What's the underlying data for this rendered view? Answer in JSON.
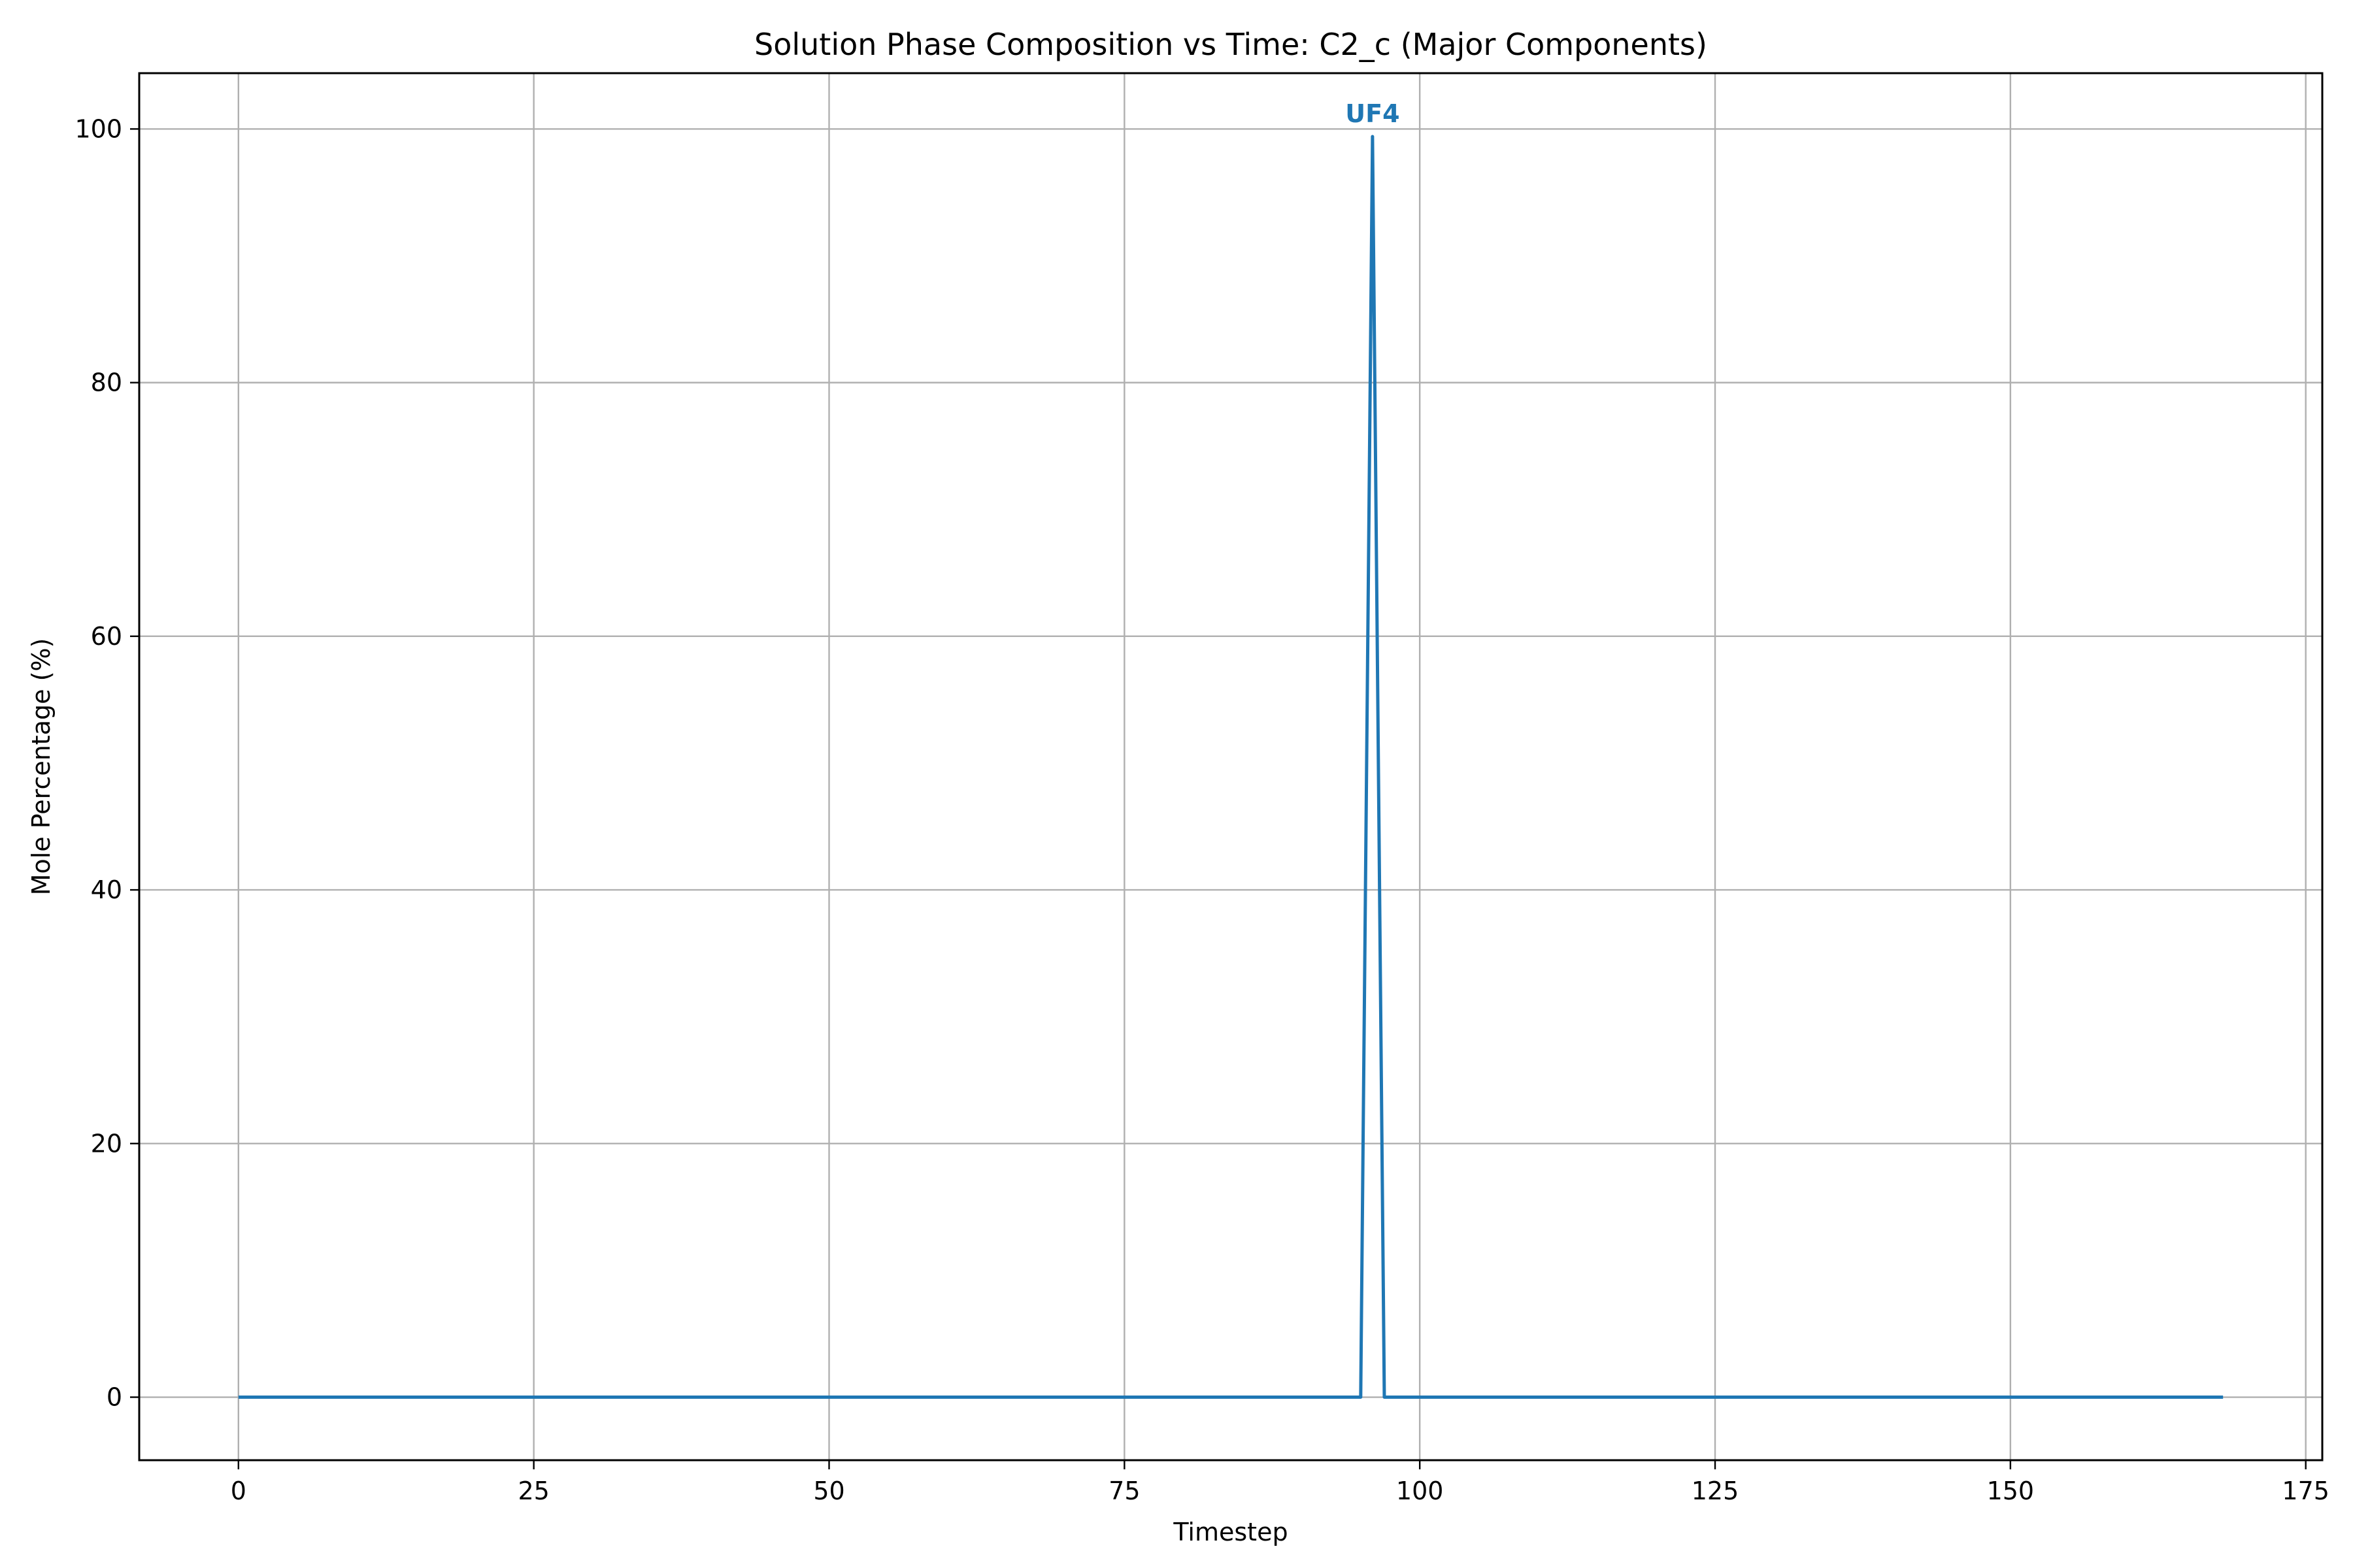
{
  "chart_data": {
    "type": "line",
    "title": "Solution Phase Composition vs Time: C2_c (Major Components)",
    "xlabel": "Timestep",
    "ylabel": "Mole Percentage (%)",
    "xlim": [
      -8.4,
      176.4
    ],
    "ylim": [
      -4.97,
      104.4
    ],
    "x_ticks": [
      0,
      25,
      50,
      75,
      100,
      125,
      150,
      175
    ],
    "y_ticks": [
      0,
      20,
      40,
      60,
      80,
      100
    ],
    "grid": true,
    "series": [
      {
        "color": "#1f77b4",
        "x": [
          0,
          95,
          96,
          97,
          168
        ],
        "y": [
          0,
          0,
          99.4,
          0,
          0
        ]
      }
    ],
    "annotations": [
      {
        "text": "UF4",
        "x": 96,
        "y": 99.4,
        "color": "#1f77b4"
      }
    ]
  }
}
